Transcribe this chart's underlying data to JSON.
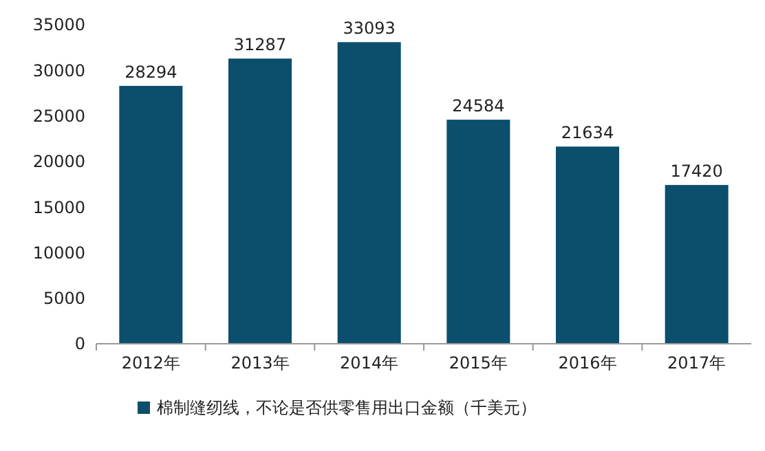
{
  "chart_data": {
    "type": "bar",
    "categories": [
      "2012年",
      "2013年",
      "2014年",
      "2015年",
      "2016年",
      "2017年"
    ],
    "series": [
      {
        "name": "棉制缝纫线，不论是否供零售用出口金额（千美元）",
        "color": "#0b4f6c",
        "values": [
          28294,
          31287,
          33093,
          24584,
          21634,
          17420
        ]
      }
    ],
    "ylim": [
      0,
      35000
    ],
    "yticks": [
      0,
      5000,
      10000,
      15000,
      20000,
      25000,
      30000,
      35000
    ],
    "data_labels": true,
    "grid": false,
    "legend": "bottom"
  }
}
